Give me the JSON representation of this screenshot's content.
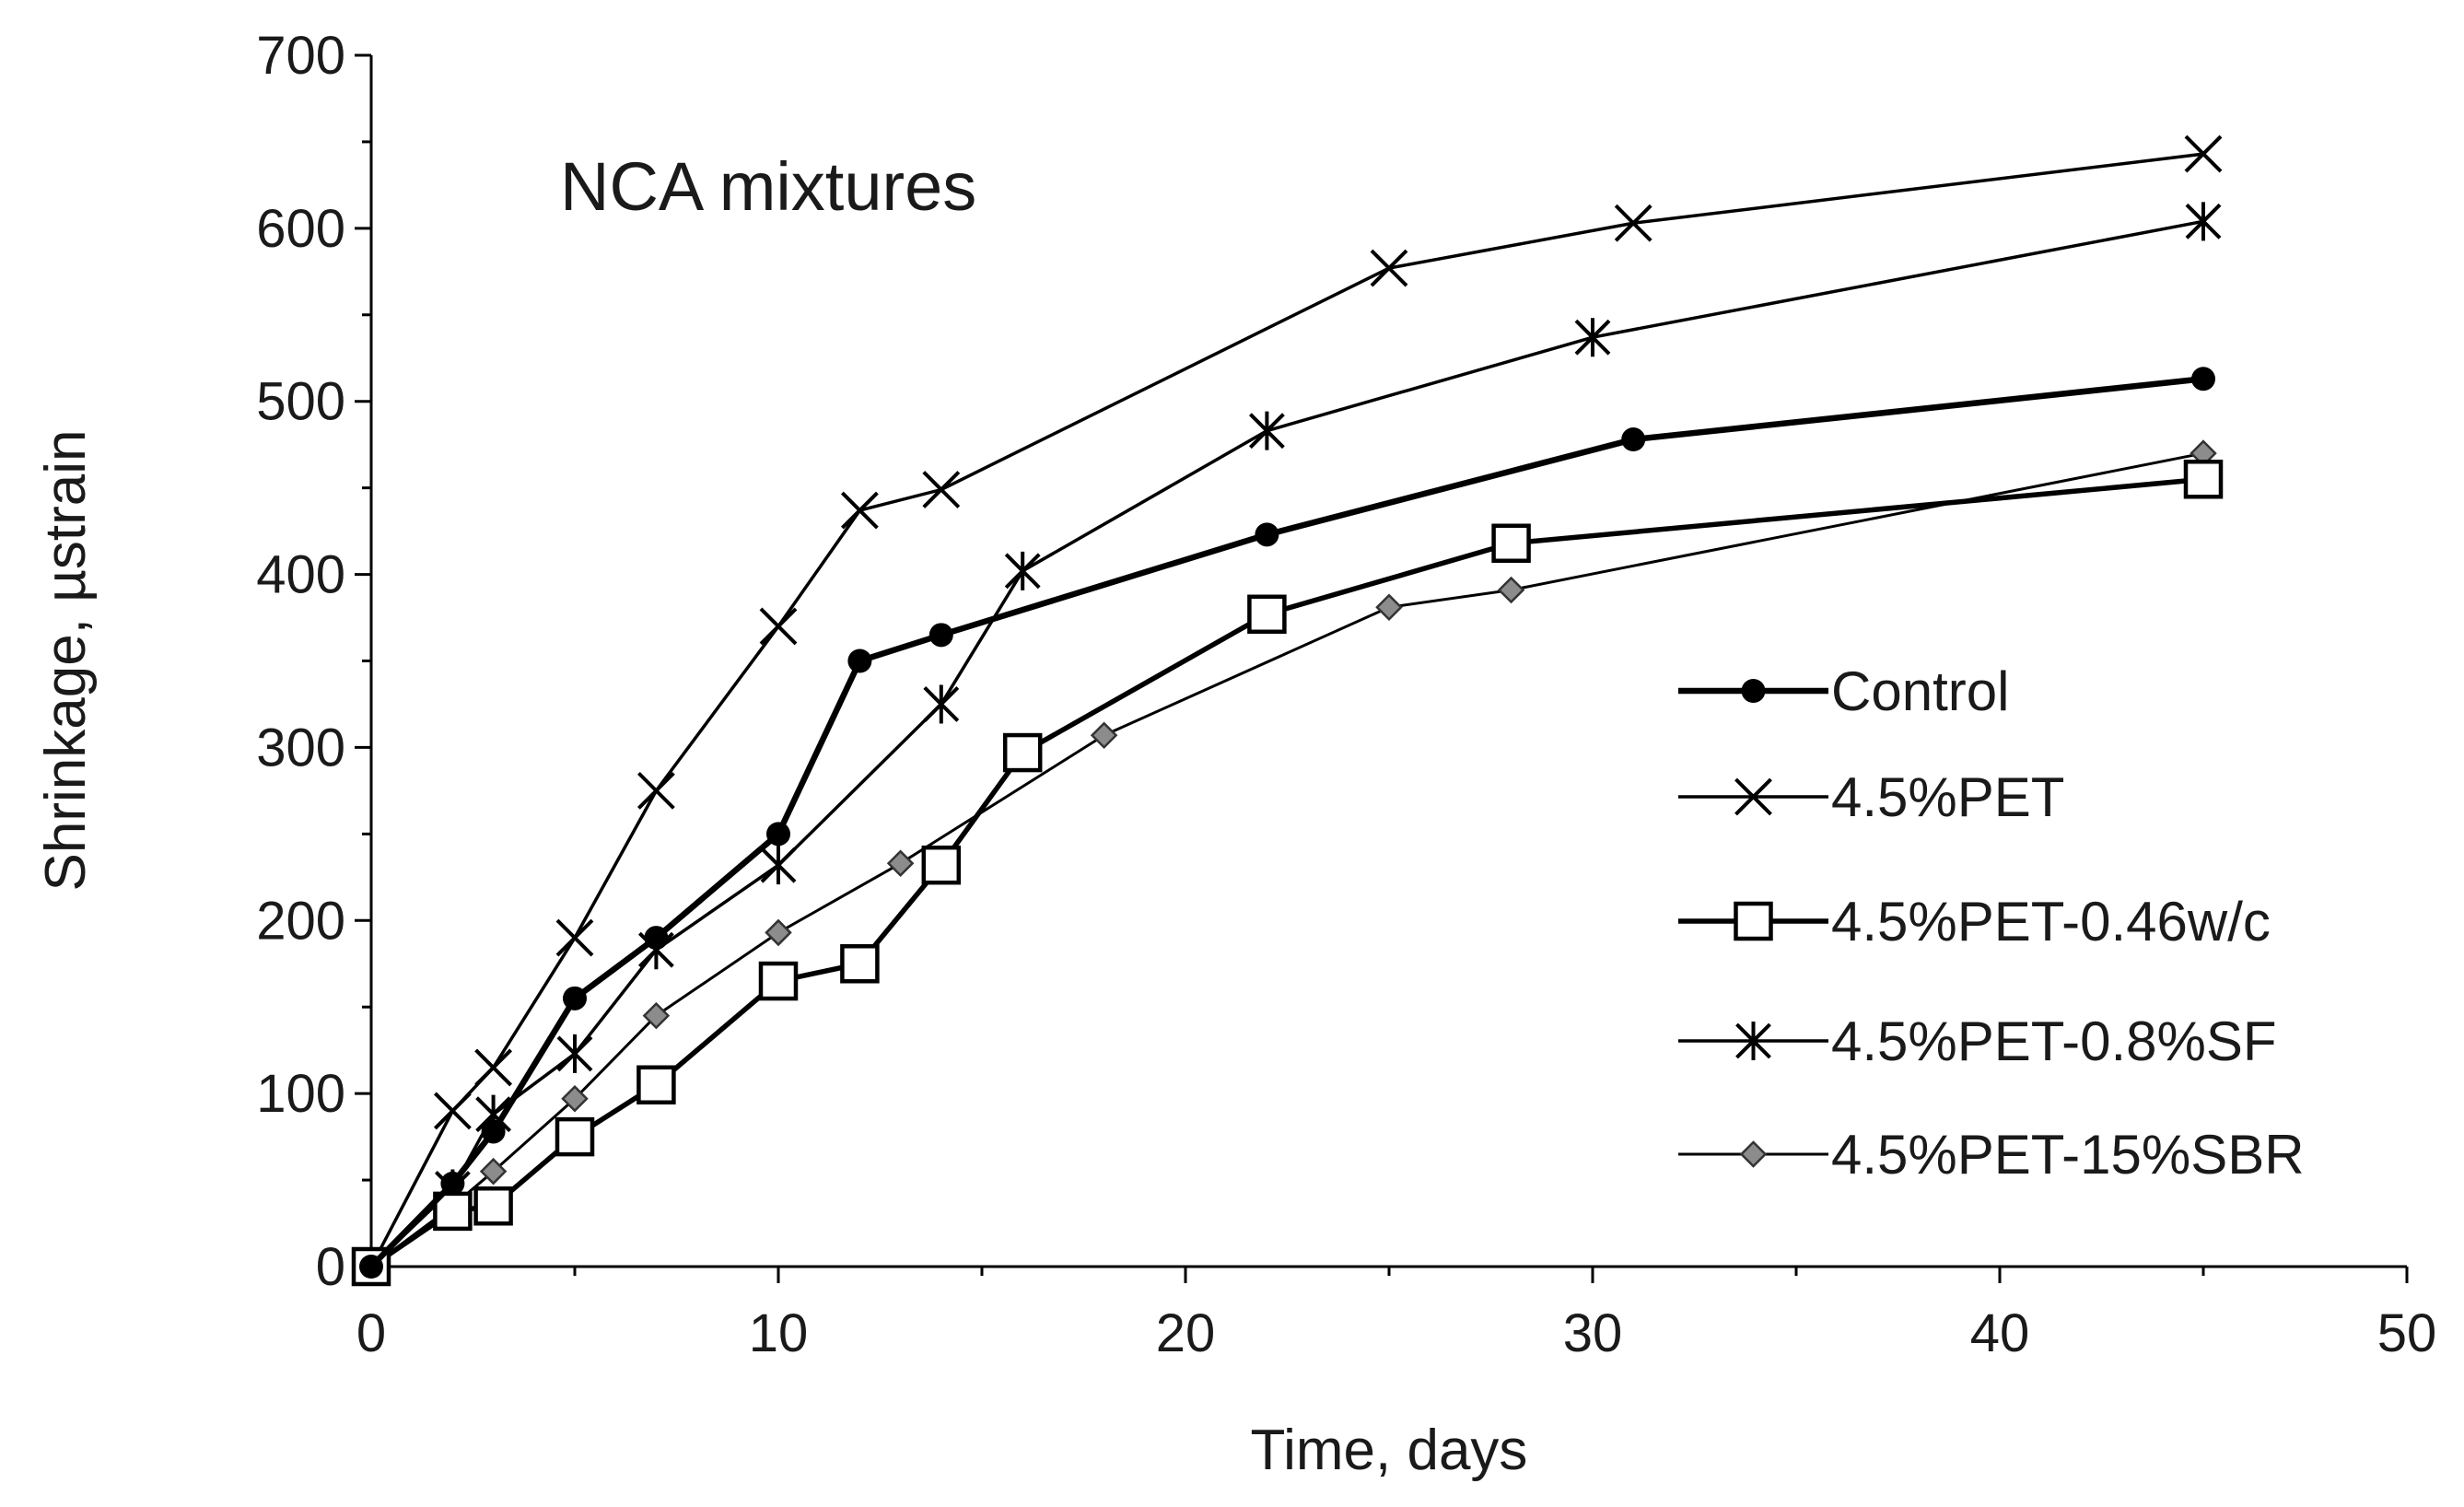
{
  "chart_data": {
    "type": "line",
    "title": "NCA mixtures",
    "xlabel": "Time, days",
    "ylabel": "Shrinkage, µstrain",
    "xlim": [
      0,
      50
    ],
    "ylim": [
      0,
      700
    ],
    "xticks": [
      0,
      10,
      20,
      30,
      40,
      50
    ],
    "yticks": [
      0,
      100,
      200,
      300,
      400,
      500,
      600,
      700
    ],
    "grid": false,
    "legend_position": "right",
    "series": [
      {
        "name": "Control",
        "marker": "filled-circle",
        "color": "#000000",
        "x": [
          0,
          2,
          3,
          5,
          7,
          10,
          12,
          14,
          22,
          31,
          45
        ],
        "y": [
          0,
          48,
          78,
          155,
          190,
          250,
          350,
          365,
          423,
          478,
          513
        ]
      },
      {
        "name": "4.5%PET",
        "marker": "x",
        "color": "#000000",
        "x": [
          0,
          2,
          3,
          5,
          7,
          10,
          12,
          14,
          25,
          31,
          45
        ],
        "y": [
          0,
          90,
          115,
          190,
          275,
          370,
          437,
          449,
          577,
          603,
          643
        ]
      },
      {
        "name": "4.5%PET-0.46w/c",
        "marker": "open-square",
        "color": "#000000",
        "x": [
          0,
          2,
          3,
          5,
          7,
          10,
          12,
          14,
          16,
          22,
          28,
          45
        ],
        "y": [
          0,
          32,
          35,
          75,
          105,
          165,
          175,
          232,
          297,
          377,
          418,
          455
        ]
      },
      {
        "name": "4.5%PET-0.8%SF",
        "marker": "asterisk",
        "color": "#000000",
        "x": [
          0,
          2,
          3,
          5,
          7,
          10,
          14,
          16,
          22,
          30,
          45
        ],
        "y": [
          0,
          45,
          88,
          123,
          183,
          232,
          325,
          402,
          483,
          537,
          604
        ]
      },
      {
        "name": "4.5%PET-15%SBR",
        "marker": "gray-diamond",
        "color": "#8c8c8c",
        "x": [
          0,
          2,
          3,
          5,
          7,
          10,
          13,
          18,
          25,
          28,
          45
        ],
        "y": [
          0,
          35,
          55,
          97,
          145,
          193,
          233,
          307,
          381,
          391,
          470
        ]
      }
    ]
  }
}
